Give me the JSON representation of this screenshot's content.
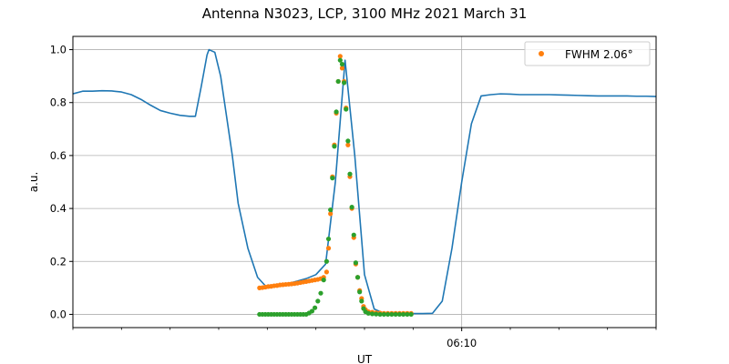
{
  "chart_data": {
    "type": "line",
    "title": "Antenna N3023, LCP, 3100 MHz 2021 March 31",
    "xlabel": "UT",
    "ylabel": "a.u.",
    "ylim": [
      -0.05,
      1.05
    ],
    "xlim_min": [
      0,
      30
    ],
    "y_ticks": [
      0.0,
      0.2,
      0.4,
      0.6,
      0.8,
      1.0
    ],
    "y_tick_labels": [
      "0.0",
      "0.2",
      "0.4",
      "0.6",
      "0.8",
      "1.0"
    ],
    "x_major_tick": {
      "minute": 20,
      "label": "06:10"
    },
    "x_minor_ticks_min": [
      0,
      2.5,
      5,
      7.5,
      10,
      12.5,
      15,
      17.5,
      22.5,
      25,
      27.5,
      30
    ],
    "grid": true,
    "legend": {
      "position": "top-right",
      "entries": [
        "FWHM 2.06$^\\circ$"
      ],
      "entries_display": [
        "FWHM 2.06°"
      ]
    },
    "colors": {
      "main": "#1f77b4",
      "fit": "#ff7f0e",
      "corrected": "#2ca02c",
      "grid": "#b0b0b0"
    },
    "series": [
      {
        "style": "line",
        "x": [
          0,
          0.5,
          1,
          1.5,
          2,
          2.5,
          3,
          3.5,
          4,
          4.5,
          5,
          5.5,
          6,
          6.3,
          6.6,
          6.9,
          7.0,
          7.3,
          7.6,
          7.9,
          8.2,
          8.5,
          9,
          9.5,
          10,
          10.5,
          11,
          11.5,
          12,
          12.5,
          13,
          13.5,
          14,
          14.5,
          15,
          15.5,
          16,
          16.5,
          17,
          17.5,
          18,
          18.5,
          19,
          19.5,
          20,
          20.5,
          21,
          21.5,
          22,
          22.5,
          23,
          23.5,
          24,
          24.5,
          25,
          25.5,
          26,
          26.5,
          27,
          27.5,
          28,
          28.5,
          29,
          29.5,
          30
        ],
        "y": [
          0.833,
          0.843,
          0.843,
          0.845,
          0.844,
          0.84,
          0.83,
          0.812,
          0.79,
          0.77,
          0.76,
          0.752,
          0.748,
          0.748,
          0.86,
          0.98,
          1.0,
          0.99,
          0.9,
          0.75,
          0.6,
          0.42,
          0.25,
          0.14,
          0.1,
          0.105,
          0.115,
          0.125,
          0.135,
          0.15,
          0.19,
          0.5,
          0.96,
          0.6,
          0.15,
          0.02,
          0.004,
          0.003,
          0.003,
          0.003,
          0.003,
          0.004,
          0.05,
          0.25,
          0.5,
          0.72,
          0.825,
          0.83,
          0.833,
          0.832,
          0.83,
          0.83,
          0.83,
          0.83,
          0.829,
          0.828,
          0.827,
          0.826,
          0.825,
          0.825,
          0.825,
          0.825,
          0.824,
          0.824,
          0.823
        ]
      },
      {
        "name": "FWHM 2.06°",
        "style": "scatter",
        "x": [
          9.6,
          9.75,
          9.9,
          10.05,
          10.2,
          10.35,
          10.5,
          10.65,
          10.8,
          10.95,
          11.1,
          11.25,
          11.4,
          11.55,
          11.7,
          11.85,
          12.0,
          12.15,
          12.3,
          12.45,
          12.6,
          12.75,
          12.9,
          13.05,
          13.15,
          13.25,
          13.35,
          13.45,
          13.55,
          13.65,
          13.75,
          13.85,
          13.95,
          14.05,
          14.15,
          14.25,
          14.35,
          14.45,
          14.55,
          14.65,
          14.75,
          14.85,
          14.95,
          15.05,
          15.2,
          15.4,
          15.6,
          15.8,
          16.0,
          16.2,
          16.4,
          16.6,
          16.8,
          17.0,
          17.2,
          17.4
        ],
        "y": [
          0.1,
          0.101,
          0.103,
          0.105,
          0.106,
          0.108,
          0.109,
          0.111,
          0.112,
          0.113,
          0.114,
          0.115,
          0.116,
          0.118,
          0.12,
          0.122,
          0.124,
          0.126,
          0.128,
          0.13,
          0.132,
          0.135,
          0.14,
          0.16,
          0.25,
          0.38,
          0.52,
          0.64,
          0.76,
          0.88,
          0.975,
          0.93,
          0.88,
          0.78,
          0.64,
          0.52,
          0.4,
          0.29,
          0.19,
          0.14,
          0.09,
          0.06,
          0.03,
          0.018,
          0.01,
          0.008,
          0.006,
          0.005,
          0.004,
          0.004,
          0.004,
          0.004,
          0.004,
          0.004,
          0.004,
          0.004
        ]
      },
      {
        "style": "scatter",
        "x": [
          9.6,
          9.75,
          9.9,
          10.05,
          10.2,
          10.35,
          10.5,
          10.65,
          10.8,
          10.95,
          11.1,
          11.25,
          11.4,
          11.55,
          11.7,
          11.85,
          12.0,
          12.15,
          12.3,
          12.45,
          12.6,
          12.75,
          12.9,
          13.05,
          13.15,
          13.25,
          13.35,
          13.45,
          13.55,
          13.65,
          13.75,
          13.85,
          13.95,
          14.05,
          14.15,
          14.25,
          14.35,
          14.45,
          14.55,
          14.65,
          14.75,
          14.85,
          14.95,
          15.05,
          15.2,
          15.4,
          15.6,
          15.8,
          16.0,
          16.2,
          16.4,
          16.6,
          16.8,
          17.0,
          17.2,
          17.4
        ],
        "y": [
          0.0,
          0.0,
          0.0,
          0.0,
          0.0,
          0.0,
          0.0,
          0.0,
          0.0,
          0.0,
          0.0,
          0.0,
          0.0,
          0.0,
          0.0,
          0.0,
          0.0,
          0.005,
          0.012,
          0.025,
          0.05,
          0.08,
          0.13,
          0.2,
          0.285,
          0.395,
          0.515,
          0.635,
          0.765,
          0.88,
          0.96,
          0.945,
          0.875,
          0.775,
          0.655,
          0.53,
          0.405,
          0.3,
          0.195,
          0.14,
          0.085,
          0.05,
          0.022,
          0.01,
          0.004,
          0.002,
          0.001,
          0.0,
          0.0,
          0.0,
          0.0,
          0.0,
          0.0,
          0.0,
          0.0,
          0.0
        ]
      }
    ]
  }
}
